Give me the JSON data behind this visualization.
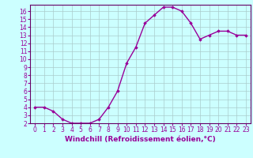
{
  "x": [
    0,
    1,
    2,
    3,
    4,
    5,
    6,
    7,
    8,
    9,
    10,
    11,
    12,
    13,
    14,
    15,
    16,
    17,
    18,
    19,
    20,
    21,
    22,
    23
  ],
  "y": [
    4.0,
    4.0,
    3.5,
    2.5,
    2.0,
    2.0,
    2.0,
    2.5,
    4.0,
    6.0,
    9.5,
    11.5,
    14.5,
    15.5,
    16.5,
    16.5,
    16.0,
    14.5,
    12.5,
    13.0,
    13.5,
    13.5,
    13.0,
    13.0
  ],
  "xlabel": "Windchill (Refroidissement éolien,°C)",
  "ylim": [
    2,
    16.8
  ],
  "xlim": [
    -0.5,
    23.5
  ],
  "yticks": [
    2,
    3,
    4,
    5,
    6,
    7,
    8,
    9,
    10,
    11,
    12,
    13,
    14,
    15,
    16
  ],
  "xticks": [
    0,
    1,
    2,
    3,
    4,
    5,
    6,
    7,
    8,
    9,
    10,
    11,
    12,
    13,
    14,
    15,
    16,
    17,
    18,
    19,
    20,
    21,
    22,
    23
  ],
  "line_color": "#990099",
  "marker": "D",
  "marker_size": 1.8,
  "bg_color": "#ccffff",
  "grid_color": "#aacccc",
  "tick_color": "#990099",
  "label_color": "#990099",
  "xlabel_fontsize": 6.5,
  "tick_fontsize": 5.5,
  "line_width": 1.0,
  "spine_color": "#660066"
}
